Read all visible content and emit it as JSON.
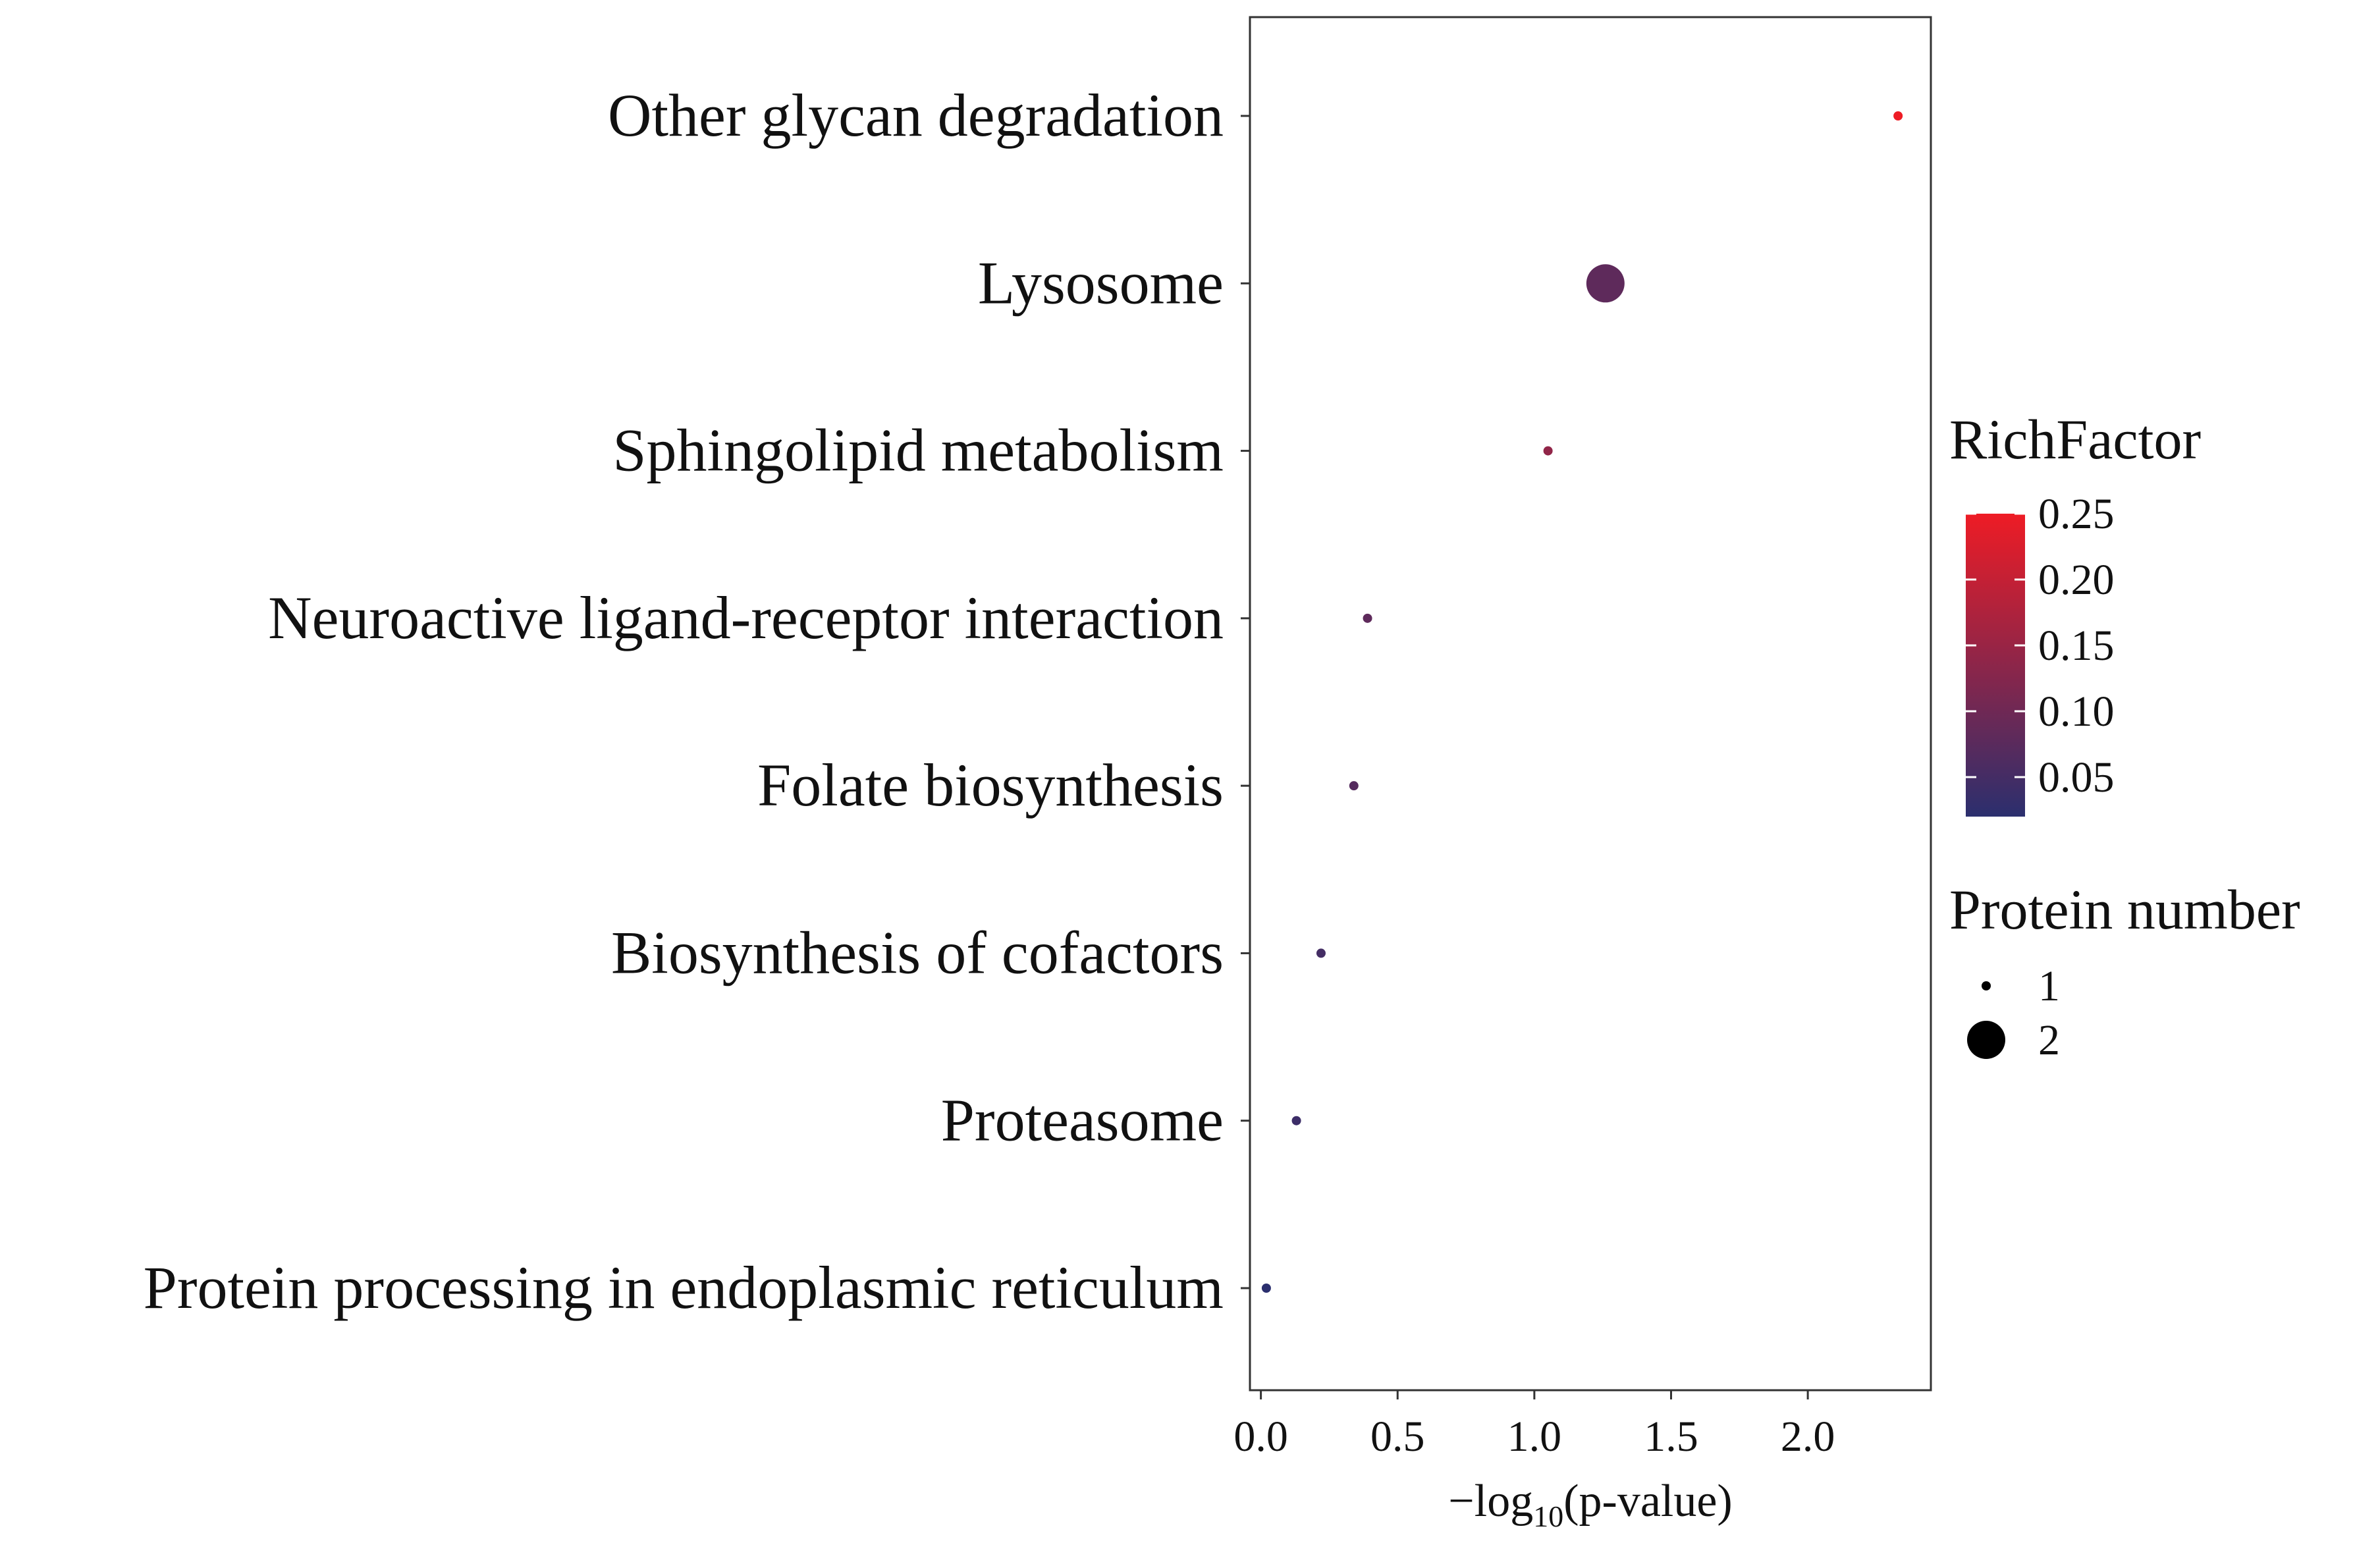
{
  "chart_data": {
    "type": "scatter",
    "title": "",
    "xlabel": "−log₁₀(p-value)",
    "xlabel_parts": {
      "prefix": "−log",
      "sub": "10",
      "suffix": "(p-value)"
    },
    "ylabel": "",
    "xlim": [
      -0.04,
      2.45
    ],
    "xticks": [
      0.0,
      0.5,
      1.0,
      1.5,
      2.0
    ],
    "xtick_labels": [
      "0.0",
      "0.5",
      "1.0",
      "1.5",
      "2.0"
    ],
    "grid": false,
    "categories": [
      "Other glycan degradation",
      "Lysosome",
      "Sphingolipid metabolism",
      "Neuroactive ligand-receptor interaction",
      "Folate biosynthesis",
      "Biosynthesis of cofactors",
      "Proteasome",
      "Protein processing in endoplasmic reticulum"
    ],
    "points": [
      {
        "pathway": "Other glycan degradation",
        "neg_log10_p": 2.33,
        "rich_factor": 0.25,
        "protein_number": 1
      },
      {
        "pathway": "Lysosome",
        "neg_log10_p": 1.26,
        "rich_factor": 0.08,
        "protein_number": 2
      },
      {
        "pathway": "Sphingolipid metabolism",
        "neg_log10_p": 1.05,
        "rich_factor": 0.14,
        "protein_number": 1
      },
      {
        "pathway": "Neuroactive ligand-receptor interaction",
        "neg_log10_p": 0.39,
        "rich_factor": 0.08,
        "protein_number": 1
      },
      {
        "pathway": "Folate biosynthesis",
        "neg_log10_p": 0.34,
        "rich_factor": 0.07,
        "protein_number": 1
      },
      {
        "pathway": "Biosynthesis of cofactors",
        "neg_log10_p": 0.22,
        "rich_factor": 0.05,
        "protein_number": 1
      },
      {
        "pathway": "Proteasome",
        "neg_log10_p": 0.13,
        "rich_factor": 0.04,
        "protein_number": 1
      },
      {
        "pathway": "Protein processing in endoplasmic reticulum",
        "neg_log10_p": 0.02,
        "rich_factor": 0.02,
        "protein_number": 1
      }
    ],
    "color_legend": {
      "title": "RichFactor",
      "range": [
        0.02,
        0.25
      ],
      "ticks": [
        0.05,
        0.1,
        0.15,
        0.2,
        0.25
      ],
      "tick_labels": [
        "0.05",
        "0.10",
        "0.15",
        "0.20",
        "0.25"
      ],
      "color_low": "#2b2f6e",
      "color_high": "#ee1c25"
    },
    "size_legend": {
      "title": "Protein number",
      "entries": [
        {
          "value": 1,
          "label": "1"
        },
        {
          "value": 2,
          "label": "2"
        }
      ]
    },
    "legend_position": "right"
  }
}
